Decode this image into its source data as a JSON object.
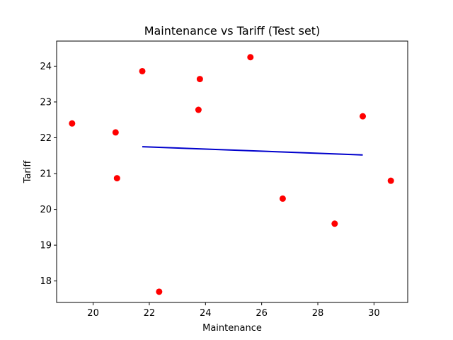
{
  "chart_data": {
    "type": "scatter",
    "title": "Maintenance vs Tariff (Test set)",
    "xlabel": "Maintenance",
    "ylabel": "Tariff",
    "xlim": [
      18.7,
      31.2
    ],
    "ylim": [
      17.4,
      24.7
    ],
    "xticks": [
      20,
      22,
      24,
      26,
      28,
      30
    ],
    "yticks": [
      18,
      19,
      20,
      21,
      22,
      23,
      24
    ],
    "grid": false,
    "points": {
      "color": "#ff0000",
      "x": [
        19.25,
        20.8,
        20.85,
        21.75,
        22.35,
        23.75,
        23.8,
        25.6,
        26.75,
        28.6,
        29.6,
        30.6
      ],
      "y": [
        22.4,
        22.15,
        20.87,
        23.86,
        17.7,
        22.78,
        23.64,
        24.25,
        20.3,
        19.6,
        22.6,
        20.8
      ]
    },
    "fit_line": {
      "color": "#0000cc",
      "x": [
        21.75,
        29.6
      ],
      "y": [
        21.75,
        21.52
      ]
    }
  }
}
